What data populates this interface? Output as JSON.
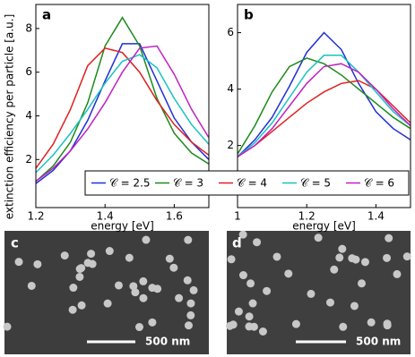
{
  "chart_data": [
    {
      "type": "line",
      "label": "a",
      "ylabel": "extinction efficiency per particle [a.u.]",
      "xlabel": "energy [eV]",
      "x": [
        1.2,
        1.25,
        1.3,
        1.35,
        1.4,
        1.45,
        1.5,
        1.55,
        1.6,
        1.65,
        1.7
      ],
      "xlim": [
        1.2,
        1.7
      ],
      "xticks": [
        1.2,
        1.4,
        1.6
      ],
      "ylim": [
        -0.2,
        9.1
      ],
      "yticks": [
        2,
        4,
        6,
        8
      ],
      "series": [
        {
          "name": "𝒞 = 2.5",
          "color": "#1f2fd6",
          "values": [
            0.9,
            1.5,
            2.4,
            3.8,
            5.6,
            7.3,
            7.3,
            5.6,
            3.9,
            2.8,
            2.0
          ]
        },
        {
          "name": "𝒞 = 3",
          "color": "#1a8a1a",
          "values": [
            1.0,
            1.7,
            2.8,
            4.6,
            7.2,
            8.5,
            7.2,
            4.8,
            3.2,
            2.3,
            1.8
          ]
        },
        {
          "name": "𝒞 = 4",
          "color": "#e02020",
          "values": [
            1.6,
            2.7,
            4.3,
            6.3,
            7.1,
            6.9,
            6.0,
            4.7,
            3.6,
            2.8,
            2.2
          ]
        },
        {
          "name": "𝒞 = 5",
          "color": "#19c2c2",
          "values": [
            1.4,
            2.2,
            3.2,
            4.3,
            5.5,
            6.5,
            6.8,
            6.2,
            4.8,
            3.6,
            2.7
          ]
        },
        {
          "name": "𝒞 = 6",
          "color": "#c020c0",
          "values": [
            1.0,
            1.6,
            2.4,
            3.4,
            4.6,
            6.0,
            7.1,
            7.2,
            5.9,
            4.3,
            3.0
          ]
        }
      ]
    },
    {
      "type": "line",
      "label": "b",
      "xlabel": "energy [eV]",
      "x": [
        1.0,
        1.05,
        1.1,
        1.15,
        1.2,
        1.25,
        1.3,
        1.35,
        1.4,
        1.45,
        1.5
      ],
      "xlim": [
        1,
        1.5
      ],
      "xticks": [
        1,
        1.2,
        1.4
      ],
      "ylim": [
        -0.2,
        7
      ],
      "yticks": [
        2,
        4,
        6
      ],
      "series": [
        {
          "color": "#1f2fd6",
          "values": [
            1.6,
            2.2,
            3.0,
            4.1,
            5.3,
            6.0,
            5.4,
            4.2,
            3.2,
            2.6,
            2.2
          ]
        },
        {
          "color": "#1a8a1a",
          "values": [
            1.7,
            2.7,
            3.9,
            4.8,
            5.1,
            4.9,
            4.5,
            4.0,
            3.5,
            3.0,
            2.6
          ]
        },
        {
          "color": "#e02020",
          "values": [
            1.6,
            2.0,
            2.5,
            3.0,
            3.5,
            3.9,
            4.2,
            4.3,
            4.0,
            3.4,
            2.8
          ]
        },
        {
          "color": "#19c2c2",
          "values": [
            1.6,
            2.1,
            2.8,
            3.7,
            4.6,
            5.2,
            5.2,
            4.6,
            3.9,
            3.2,
            2.7
          ]
        },
        {
          "color": "#c020c0",
          "values": [
            1.6,
            2.0,
            2.6,
            3.4,
            4.2,
            4.8,
            4.9,
            4.6,
            4.0,
            3.3,
            2.7
          ]
        }
      ]
    }
  ],
  "images": [
    {
      "label": "c",
      "scale_bar": "500 nm"
    },
    {
      "label": "d",
      "scale_bar": "500 nm"
    }
  ]
}
